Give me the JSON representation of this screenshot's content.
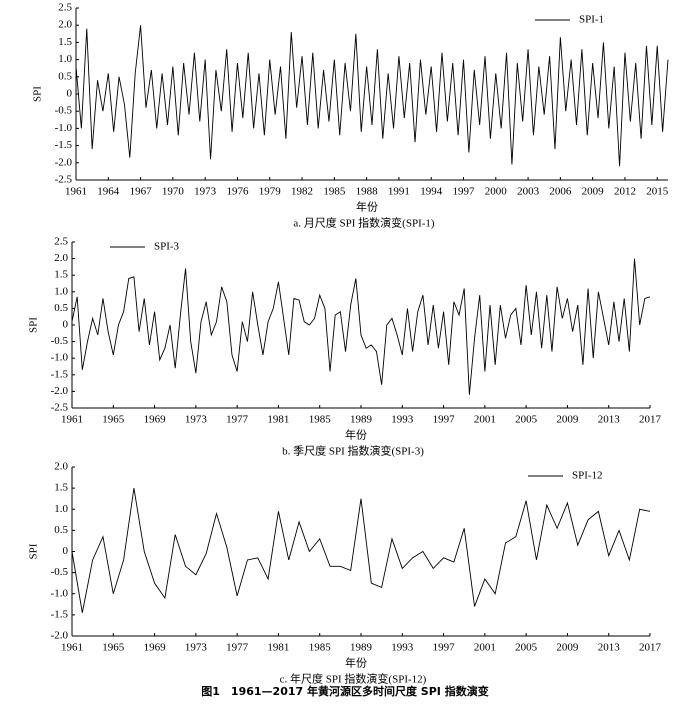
{
  "figure_caption": "图1　1961—2017 年黄河源区多时间尺度 SPI 指数演变",
  "chart_data": [
    {
      "type": "line",
      "title": "a. 月尺度 SPI 指数演变(SPI-1)",
      "x_label": "年份",
      "y_label": "SPI",
      "xlim": [
        1961,
        2016
      ],
      "xticks": [
        1961,
        1964,
        1967,
        1970,
        1973,
        1976,
        1979,
        1982,
        1985,
        1988,
        1991,
        1994,
        1997,
        2000,
        2003,
        2006,
        2009,
        2012,
        2015
      ],
      "ylim": [
        -2.5,
        2.5
      ],
      "yticks": [
        {
          "value": 2.5,
          "label": "2.5"
        },
        {
          "value": 2,
          "label": "2.0"
        },
        {
          "value": 1.5,
          "label": "1.5"
        },
        {
          "value": 1,
          "label": "1.0"
        },
        {
          "value": 0.5,
          "label": "0.5"
        },
        0,
        {
          "value": -0.5,
          "label": "-0.5"
        },
        {
          "value": -1,
          "label": "-1.0"
        },
        {
          "value": -1.5,
          "label": "-1.5"
        },
        {
          "value": -2,
          "label": "-2.0"
        },
        {
          "value": -2.5,
          "label": "-2.5"
        }
      ],
      "x": [
        1961,
        1961.5,
        1962,
        1962.5,
        1963,
        1963.5,
        1964,
        1964.5,
        1965,
        1965.5,
        1966,
        1966.5,
        1967,
        1967.5,
        1968,
        1968.5,
        1969,
        1969.5,
        1970,
        1970.5,
        1971,
        1971.5,
        1972,
        1972.5,
        1973,
        1973.5,
        1974,
        1974.5,
        1975,
        1975.5,
        1976,
        1976.5,
        1977,
        1977.5,
        1978,
        1978.5,
        1979,
        1979.5,
        1980,
        1980.5,
        1981,
        1981.5,
        1982,
        1982.5,
        1983,
        1983.5,
        1984,
        1984.5,
        1985,
        1985.5,
        1986,
        1986.5,
        1987,
        1987.5,
        1988,
        1988.5,
        1989,
        1989.5,
        1990,
        1990.5,
        1991,
        1991.5,
        1992,
        1992.5,
        1993,
        1993.5,
        1994,
        1994.5,
        1995,
        1995.5,
        1996,
        1996.5,
        1997,
        1997.5,
        1998,
        1998.5,
        1999,
        1999.5,
        2000,
        2000.5,
        2001,
        2001.5,
        2002,
        2002.5,
        2003,
        2003.5,
        2004,
        2004.5,
        2005,
        2005.5,
        2006,
        2006.5,
        2007,
        2007.5,
        2008,
        2008.5,
        2009,
        2009.5,
        2010,
        2010.5,
        2011,
        2011.5,
        2012,
        2012.5,
        2013,
        2013.5,
        2014,
        2014.5,
        2015,
        2015.5,
        2016
      ],
      "series": [
        {
          "name": "SPI-1",
          "color": "#000000",
          "values": [
            0.8,
            -1.0,
            1.9,
            -1.6,
            0.4,
            -0.5,
            0.6,
            -1.1,
            0.5,
            -0.3,
            -1.85,
            0.6,
            2.0,
            -0.4,
            0.7,
            -1.0,
            0.6,
            -0.9,
            0.8,
            -1.2,
            0.9,
            -0.6,
            1.2,
            -0.8,
            1.0,
            -1.9,
            0.7,
            -0.5,
            1.3,
            -1.1,
            0.9,
            -0.7,
            1.2,
            -1.0,
            0.6,
            -1.2,
            1.0,
            -0.6,
            0.8,
            -1.3,
            1.8,
            -0.4,
            1.1,
            -0.9,
            1.2,
            -1.0,
            0.7,
            -0.8,
            1.0,
            -1.2,
            0.9,
            -0.5,
            1.75,
            -1.1,
            0.8,
            -0.9,
            1.3,
            -1.3,
            0.6,
            -1.0,
            1.1,
            -0.7,
            0.9,
            -1.4,
            1.0,
            -0.6,
            0.8,
            -1.1,
            1.2,
            -0.8,
            0.9,
            -1.2,
            1.0,
            -1.7,
            0.7,
            -0.9,
            1.1,
            -1.3,
            0.6,
            -1.0,
            1.2,
            -2.05,
            0.9,
            -0.8,
            1.3,
            -1.2,
            0.8,
            -0.6,
            1.1,
            -1.6,
            1.65,
            -0.5,
            1.0,
            -0.9,
            1.3,
            -1.2,
            0.9,
            -0.7,
            1.5,
            -1.0,
            0.8,
            -2.1,
            1.2,
            -0.8,
            0.9,
            -1.3,
            1.4,
            -0.9,
            1.4,
            -1.1,
            1.0
          ]
        }
      ]
    },
    {
      "type": "line",
      "title": "b. 季尺度 SPI 指数演变(SPI-3)",
      "x_label": "年份",
      "y_label": "SPI",
      "xlim": [
        1961,
        2017
      ],
      "xticks": [
        1961,
        1965,
        1969,
        1973,
        1977,
        1981,
        1985,
        1989,
        1993,
        1997,
        2001,
        2005,
        2009,
        2013,
        2017
      ],
      "ylim": [
        -2.5,
        2.5
      ],
      "yticks": [
        {
          "value": 2.5,
          "label": "2.5"
        },
        {
          "value": 2,
          "label": "2.0"
        },
        {
          "value": 1.5,
          "label": "1.5"
        },
        {
          "value": 1,
          "label": "1.0"
        },
        {
          "value": 0.5,
          "label": "0.5"
        },
        0,
        {
          "value": -0.5,
          "label": "-0.5"
        },
        {
          "value": -1,
          "label": "-1.0"
        },
        {
          "value": -1.5,
          "label": "-1.5"
        },
        {
          "value": -2,
          "label": "-2.0"
        },
        {
          "value": -2.5,
          "label": "-2.5"
        }
      ],
      "x": [
        1961,
        1961.5,
        1962,
        1962.5,
        1963,
        1963.5,
        1964,
        1964.5,
        1965,
        1965.5,
        1966,
        1966.5,
        1967,
        1967.5,
        1968,
        1968.5,
        1969,
        1969.5,
        1970,
        1970.5,
        1971,
        1971.5,
        1972,
        1972.5,
        1973,
        1973.5,
        1974,
        1974.5,
        1975,
        1975.5,
        1976,
        1976.5,
        1977,
        1977.5,
        1978,
        1978.5,
        1979,
        1979.5,
        1980,
        1980.5,
        1981,
        1981.5,
        1982,
        1982.5,
        1983,
        1983.5,
        1984,
        1984.5,
        1985,
        1985.5,
        1986,
        1986.5,
        1987,
        1987.5,
        1988,
        1988.5,
        1989,
        1989.5,
        1990,
        1990.5,
        1991,
        1991.5,
        1992,
        1992.5,
        1993,
        1993.5,
        1994,
        1994.5,
        1995,
        1995.5,
        1996,
        1996.5,
        1997,
        1997.5,
        1998,
        1998.5,
        1999,
        1999.5,
        2000,
        2000.5,
        2001,
        2001.5,
        2002,
        2002.5,
        2003,
        2003.5,
        2004,
        2004.5,
        2005,
        2005.5,
        2006,
        2006.5,
        2007,
        2007.5,
        2008,
        2008.5,
        2009,
        2009.5,
        2010,
        2010.5,
        2011,
        2011.5,
        2012,
        2012.5,
        2013,
        2013.5,
        2014,
        2014.5,
        2015,
        2015.5,
        2016,
        2016.5,
        2017
      ],
      "series": [
        {
          "name": "SPI-3",
          "color": "#000000",
          "values": [
            0.1,
            0.85,
            -1.35,
            -0.5,
            0.2,
            -0.3,
            0.8,
            -0.2,
            -0.9,
            0.0,
            0.4,
            1.4,
            1.45,
            -0.2,
            0.8,
            -0.6,
            0.4,
            -1.05,
            -0.7,
            0.0,
            -1.3,
            0.3,
            1.7,
            -0.5,
            -1.45,
            0.1,
            0.7,
            -0.3,
            0.1,
            1.15,
            0.7,
            -0.9,
            -1.4,
            0.1,
            -0.5,
            1.0,
            0.0,
            -0.9,
            0.1,
            0.5,
            1.3,
            0.2,
            -0.9,
            0.8,
            0.75,
            0.1,
            0.0,
            0.2,
            0.9,
            0.5,
            -1.4,
            0.3,
            0.4,
            -0.8,
            0.6,
            1.4,
            -0.3,
            -0.7,
            -0.6,
            -0.8,
            -1.8,
            0.0,
            0.2,
            -0.3,
            -0.9,
            0.5,
            -0.8,
            0.4,
            0.9,
            -0.6,
            0.6,
            -0.7,
            0.4,
            -1.2,
            0.7,
            0.3,
            1.1,
            -2.1,
            -0.4,
            0.9,
            -1.4,
            0.6,
            -1.2,
            0.6,
            -0.4,
            0.3,
            0.5,
            -0.6,
            1.2,
            -0.3,
            1.0,
            -0.7,
            0.9,
            -0.8,
            1.15,
            0.2,
            0.8,
            -0.2,
            0.6,
            -1.2,
            1.1,
            -1.0,
            1.0,
            0.2,
            -0.6,
            0.7,
            -0.5,
            0.8,
            -0.8,
            2.0,
            0.0,
            0.8,
            0.85
          ]
        }
      ]
    },
    {
      "type": "line",
      "title": "c. 年尺度 SPI 指数演变(SPI-12)",
      "x_label": "年份",
      "y_label": "SPI",
      "xlim": [
        1961,
        2017
      ],
      "xticks": [
        1961,
        1965,
        1969,
        1973,
        1977,
        1981,
        1985,
        1989,
        1993,
        1997,
        2001,
        2005,
        2009,
        2013,
        2017
      ],
      "ylim": [
        -2,
        2
      ],
      "yticks": [
        {
          "value": 2,
          "label": "2.0"
        },
        {
          "value": 1.5,
          "label": "1.5"
        },
        {
          "value": 1,
          "label": "1.0"
        },
        {
          "value": 0.5,
          "label": "0.5"
        },
        0,
        {
          "value": -0.5,
          "label": "-0.5"
        },
        {
          "value": -1,
          "label": "-1.0"
        },
        {
          "value": -1.5,
          "label": "-1.5"
        },
        {
          "value": -2,
          "label": "-2.0"
        }
      ],
      "x": [
        1961,
        1962,
        1963,
        1964,
        1965,
        1966,
        1967,
        1968,
        1969,
        1970,
        1971,
        1972,
        1973,
        1974,
        1975,
        1976,
        1977,
        1978,
        1979,
        1980,
        1981,
        1982,
        1983,
        1984,
        1985,
        1986,
        1987,
        1988,
        1989,
        1990,
        1991,
        1992,
        1993,
        1994,
        1995,
        1996,
        1997,
        1998,
        1999,
        2000,
        2001,
        2002,
        2003,
        2004,
        2005,
        2006,
        2007,
        2008,
        2009,
        2010,
        2011,
        2012,
        2013,
        2014,
        2015,
        2016,
        2017
      ],
      "series": [
        {
          "name": "SPI-12",
          "color": "#000000",
          "values": [
            0.0,
            -1.45,
            -0.2,
            0.35,
            -1.0,
            -0.2,
            1.5,
            0.0,
            -0.75,
            -1.1,
            0.4,
            -0.35,
            -0.55,
            -0.05,
            0.9,
            0.1,
            -1.05,
            -0.2,
            -0.15,
            -0.65,
            0.95,
            -0.2,
            0.7,
            0.0,
            0.3,
            -0.35,
            -0.35,
            -0.45,
            1.25,
            -0.75,
            -0.85,
            0.3,
            -0.4,
            -0.15,
            0.0,
            -0.4,
            -0.15,
            -0.25,
            0.55,
            -1.3,
            -0.65,
            -1.0,
            0.2,
            0.35,
            1.2,
            -0.2,
            1.1,
            0.55,
            1.15,
            0.15,
            0.75,
            0.95,
            -0.1,
            0.5,
            -0.2,
            1.0,
            0.95
          ]
        }
      ]
    }
  ]
}
